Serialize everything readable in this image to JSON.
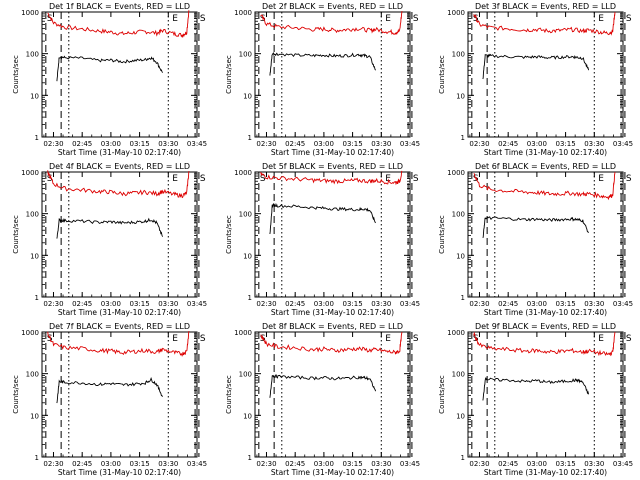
{
  "figure": {
    "xlabel": "Start Time (31-May-10 02:17:40)",
    "ylabel": "Counts/sec",
    "x_tick_labels": [
      "02:30",
      "02:45",
      "03:00",
      "03:15",
      "03:30",
      "03:45"
    ],
    "y_tick_labels": [
      "1",
      "10",
      "100",
      "1000"
    ],
    "event_marks": {
      "start": "S",
      "end": "E"
    }
  },
  "chart_data": [
    {
      "type": "line",
      "title": "Det 1f BLACK = Events, RED = LLD",
      "xlabel": "Start Time (31-May-10 02:17:40)",
      "ylabel": "Counts/sec",
      "y_scale": "log",
      "ylim": [
        1,
        1000
      ],
      "x_ticks": [
        "02:30",
        "02:45",
        "03:00",
        "03:15",
        "03:30",
        "03:45"
      ],
      "colors": {
        "lld": "#dd0000",
        "events": "#000000"
      },
      "series": [
        {
          "name": "RED = LLD",
          "t": [
            2.45,
            2.5,
            2.6,
            2.75,
            2.9,
            3.0,
            3.1,
            3.2,
            3.3,
            3.4,
            3.45,
            3.55,
            3.62,
            3.66,
            3.68
          ],
          "values": [
            950,
            550,
            430,
            390,
            350,
            330,
            300,
            320,
            340,
            310,
            360,
            300,
            280,
            320,
            1100
          ]
        },
        {
          "name": "BLACK = Events",
          "t": [
            2.53,
            2.55,
            2.6,
            2.75,
            2.9,
            3.0,
            3.1,
            3.2,
            3.3,
            3.35,
            3.4,
            3.45
          ],
          "values": [
            22,
            85,
            80,
            78,
            68,
            70,
            64,
            68,
            72,
            80,
            62,
            35
          ]
        }
      ],
      "event_lines": {
        "dashed": [
          "02:26",
          "02:34",
          "03:44",
          "03:46"
        ],
        "dotted": [
          "02:38",
          "03:30"
        ],
        "labels": {
          "S_left": "S",
          "E": "E",
          "S_right": "S"
        }
      }
    },
    {
      "type": "line",
      "title": "Det 2f BLACK = Events, RED = LLD",
      "xlabel": "Start Time (31-May-10 02:17:40)",
      "ylabel": "Counts/sec",
      "y_scale": "log",
      "ylim": [
        1,
        1000
      ],
      "x_ticks": [
        "02:30",
        "02:45",
        "03:00",
        "03:15",
        "03:30",
        "03:45"
      ],
      "colors": {
        "lld": "#dd0000",
        "events": "#000000"
      },
      "series": [
        {
          "name": "RED = LLD",
          "t": [
            2.45,
            2.5,
            2.6,
            2.75,
            2.9,
            3.0,
            3.1,
            3.2,
            3.3,
            3.4,
            3.45,
            3.55,
            3.62,
            3.66,
            3.68
          ],
          "values": [
            850,
            520,
            440,
            420,
            380,
            390,
            360,
            380,
            400,
            360,
            380,
            340,
            320,
            350,
            1050
          ]
        },
        {
          "name": "BLACK = Events",
          "t": [
            2.53,
            2.55,
            2.6,
            2.75,
            2.9,
            3.0,
            3.1,
            3.2,
            3.3,
            3.35,
            3.4,
            3.45
          ],
          "values": [
            30,
            100,
            98,
            92,
            90,
            92,
            88,
            90,
            95,
            90,
            85,
            40
          ]
        }
      ],
      "event_lines": {
        "dashed": [
          "02:26",
          "02:34",
          "03:44",
          "03:46"
        ],
        "dotted": [
          "02:38",
          "03:30"
        ],
        "labels": {
          "S_left": "S",
          "E": "E",
          "S_right": "S"
        }
      }
    },
    {
      "type": "line",
      "title": "Det 3f BLACK = Events, RED = LLD",
      "xlabel": "Start Time (31-May-10 02:17:40)",
      "ylabel": "Counts/sec",
      "y_scale": "log",
      "ylim": [
        1,
        1000
      ],
      "x_ticks": [
        "02:30",
        "02:45",
        "03:00",
        "03:15",
        "03:30",
        "03:45"
      ],
      "colors": {
        "lld": "#dd0000",
        "events": "#000000"
      },
      "series": [
        {
          "name": "RED = LLD",
          "t": [
            2.45,
            2.5,
            2.6,
            2.75,
            2.9,
            3.0,
            3.1,
            3.2,
            3.3,
            3.4,
            3.45,
            3.55,
            3.62,
            3.66,
            3.68
          ],
          "values": [
            900,
            500,
            420,
            400,
            370,
            380,
            350,
            360,
            380,
            350,
            370,
            330,
            310,
            340,
            1000
          ]
        },
        {
          "name": "BLACK = Events",
          "t": [
            2.53,
            2.55,
            2.6,
            2.75,
            2.9,
            3.0,
            3.1,
            3.2,
            3.3,
            3.35,
            3.4,
            3.45
          ],
          "values": [
            25,
            90,
            88,
            85,
            82,
            84,
            80,
            82,
            85,
            82,
            78,
            40
          ]
        }
      ],
      "event_lines": {
        "dashed": [
          "02:26",
          "02:34",
          "03:44",
          "03:46"
        ],
        "dotted": [
          "02:38",
          "03:30"
        ],
        "labels": {
          "S_left": "S",
          "E": "E",
          "S_right": "S"
        }
      }
    },
    {
      "type": "line",
      "title": "Det 4f BLACK = Events, RED = LLD",
      "xlabel": "Start Time (31-May-10 02:17:40)",
      "ylabel": "Counts/sec",
      "y_scale": "log",
      "ylim": [
        1,
        1000
      ],
      "x_ticks": [
        "02:30",
        "02:45",
        "03:00",
        "03:15",
        "03:30",
        "03:45"
      ],
      "colors": {
        "lld": "#dd0000",
        "events": "#000000"
      },
      "series": [
        {
          "name": "RED = LLD",
          "t": [
            2.45,
            2.5,
            2.6,
            2.75,
            2.9,
            3.0,
            3.1,
            3.2,
            3.3,
            3.4,
            3.45,
            3.55,
            3.62,
            3.66,
            3.68
          ],
          "values": [
            1000,
            520,
            400,
            370,
            340,
            330,
            300,
            310,
            330,
            300,
            340,
            290,
            270,
            310,
            1050
          ]
        },
        {
          "name": "BLACK = Events",
          "t": [
            2.53,
            2.55,
            2.6,
            2.75,
            2.9,
            3.0,
            3.1,
            3.2,
            3.3,
            3.35,
            3.4,
            3.45
          ],
          "values": [
            25,
            70,
            68,
            66,
            62,
            64,
            60,
            62,
            66,
            72,
            60,
            28
          ]
        }
      ],
      "event_lines": {
        "dashed": [
          "02:26",
          "02:34",
          "03:44",
          "03:46"
        ],
        "dotted": [
          "02:38",
          "03:30"
        ],
        "labels": {
          "S_left": "S",
          "E": "E",
          "S_right": "S"
        }
      }
    },
    {
      "type": "line",
      "title": "Det 5f BLACK = Events, RED = LLD",
      "xlabel": "Start Time (31-May-10 02:17:40)",
      "ylabel": "Counts/sec",
      "y_scale": "log",
      "ylim": [
        1,
        1000
      ],
      "x_ticks": [
        "02:30",
        "02:45",
        "03:00",
        "03:15",
        "03:30",
        "03:45"
      ],
      "colors": {
        "lld": "#dd0000",
        "events": "#000000"
      },
      "series": [
        {
          "name": "RED = LLD",
          "t": [
            2.45,
            2.5,
            2.6,
            2.75,
            2.9,
            3.0,
            3.1,
            3.2,
            3.3,
            3.4,
            3.45,
            3.55,
            3.62,
            3.66,
            3.68
          ],
          "values": [
            900,
            760,
            720,
            680,
            640,
            620,
            600,
            610,
            630,
            600,
            620,
            580,
            560,
            600,
            1000
          ]
        },
        {
          "name": "BLACK = Events",
          "t": [
            2.53,
            2.55,
            2.6,
            2.75,
            2.9,
            3.0,
            3.1,
            3.2,
            3.3,
            3.35,
            3.4,
            3.45
          ],
          "values": [
            30,
            160,
            155,
            150,
            140,
            135,
            130,
            128,
            125,
            130,
            120,
            60
          ]
        }
      ],
      "event_lines": {
        "dashed": [
          "02:26",
          "02:34",
          "03:44",
          "03:46"
        ],
        "dotted": [
          "02:38",
          "03:30"
        ],
        "labels": {
          "S_left": "S",
          "E": "E",
          "S_right": "S"
        }
      }
    },
    {
      "type": "line",
      "title": "Det 6f BLACK = Events, RED = LLD",
      "xlabel": "Start Time (31-May-10 02:17:40)",
      "ylabel": "Counts/sec",
      "y_scale": "log",
      "ylim": [
        1,
        1000
      ],
      "x_ticks": [
        "02:30",
        "02:45",
        "03:00",
        "03:15",
        "03:30",
        "03:45"
      ],
      "colors": {
        "lld": "#dd0000",
        "events": "#000000"
      },
      "series": [
        {
          "name": "RED = LLD",
          "t": [
            2.45,
            2.5,
            2.6,
            2.75,
            2.9,
            3.0,
            3.1,
            3.2,
            3.3,
            3.4,
            3.45,
            3.55,
            3.62,
            3.66,
            3.68
          ],
          "values": [
            950,
            480,
            380,
            350,
            330,
            320,
            300,
            300,
            310,
            290,
            300,
            270,
            250,
            280,
            1000
          ]
        },
        {
          "name": "BLACK = Events",
          "t": [
            2.53,
            2.55,
            2.6,
            2.75,
            2.9,
            3.0,
            3.1,
            3.2,
            3.3,
            3.35,
            3.4,
            3.45
          ],
          "values": [
            25,
            80,
            78,
            76,
            72,
            74,
            70,
            72,
            75,
            72,
            68,
            35
          ]
        }
      ],
      "event_lines": {
        "dashed": [
          "02:26",
          "02:34",
          "03:44",
          "03:46"
        ],
        "dotted": [
          "02:38",
          "03:30"
        ],
        "labels": {
          "S_left": "S",
          "E": "E",
          "S_right": "S"
        }
      }
    },
    {
      "type": "line",
      "title": "Det 7f BLACK = Events, RED = LLD",
      "xlabel": "Start Time (31-May-10 02:17:40)",
      "ylabel": "Counts/sec",
      "y_scale": "log",
      "ylim": [
        1,
        1000
      ],
      "x_ticks": [
        "02:30",
        "02:45",
        "03:00",
        "03:15",
        "03:30",
        "03:45"
      ],
      "colors": {
        "lld": "#dd0000",
        "events": "#000000"
      },
      "series": [
        {
          "name": "RED = LLD",
          "t": [
            2.45,
            2.5,
            2.6,
            2.75,
            2.9,
            3.0,
            3.1,
            3.2,
            3.3,
            3.4,
            3.45,
            3.55,
            3.62,
            3.66,
            3.68
          ],
          "values": [
            900,
            500,
            420,
            400,
            360,
            350,
            320,
            340,
            360,
            330,
            380,
            320,
            300,
            340,
            1050
          ]
        },
        {
          "name": "BLACK = Events",
          "t": [
            2.53,
            2.55,
            2.6,
            2.75,
            2.9,
            3.0,
            3.1,
            3.2,
            3.3,
            3.35,
            3.4,
            3.45
          ],
          "values": [
            20,
            65,
            62,
            60,
            55,
            58,
            54,
            56,
            60,
            72,
            55,
            28
          ]
        }
      ],
      "event_lines": {
        "dashed": [
          "02:26",
          "02:34",
          "03:44",
          "03:46"
        ],
        "dotted": [
          "02:38",
          "03:30"
        ],
        "labels": {
          "S_left": "S",
          "E": "E",
          "S_right": "S"
        }
      }
    },
    {
      "type": "line",
      "title": "Det 8f BLACK = Events, RED = LLD",
      "xlabel": "Start Time (31-May-10 02:17:40)",
      "ylabel": "Counts/sec",
      "y_scale": "log",
      "ylim": [
        1,
        1000
      ],
      "x_ticks": [
        "02:30",
        "02:45",
        "03:00",
        "03:15",
        "03:30",
        "03:45"
      ],
      "colors": {
        "lld": "#dd0000",
        "events": "#000000"
      },
      "series": [
        {
          "name": "RED = LLD",
          "t": [
            2.45,
            2.5,
            2.6,
            2.75,
            2.9,
            3.0,
            3.1,
            3.2,
            3.3,
            3.4,
            3.45,
            3.55,
            3.62,
            3.66,
            3.68
          ],
          "values": [
            850,
            520,
            440,
            420,
            380,
            390,
            360,
            380,
            400,
            360,
            380,
            340,
            320,
            350,
            1000
          ]
        },
        {
          "name": "BLACK = Events",
          "t": [
            2.53,
            2.55,
            2.6,
            2.75,
            2.9,
            3.0,
            3.1,
            3.2,
            3.3,
            3.35,
            3.4,
            3.45
          ],
          "values": [
            25,
            90,
            85,
            82,
            78,
            80,
            76,
            78,
            82,
            80,
            75,
            38
          ]
        }
      ],
      "event_lines": {
        "dashed": [
          "02:26",
          "02:34",
          "03:44",
          "03:46"
        ],
        "dotted": [
          "02:38",
          "03:30"
        ],
        "labels": {
          "S_left": "S",
          "E": "E",
          "S_right": "S"
        }
      }
    },
    {
      "type": "line",
      "title": "Det 9f BLACK = Events, RED = LLD",
      "xlabel": "Start Time (31-May-10 02:17:40)",
      "ylabel": "Counts/sec",
      "y_scale": "log",
      "ylim": [
        1,
        1000
      ],
      "x_ticks": [
        "02:30",
        "02:45",
        "03:00",
        "03:15",
        "03:30",
        "03:45"
      ],
      "colors": {
        "lld": "#dd0000",
        "events": "#000000"
      },
      "series": [
        {
          "name": "RED = LLD",
          "t": [
            2.45,
            2.5,
            2.6,
            2.75,
            2.9,
            3.0,
            3.1,
            3.2,
            3.3,
            3.4,
            3.45,
            3.55,
            3.62,
            3.66,
            3.68
          ],
          "values": [
            900,
            480,
            400,
            380,
            350,
            360,
            330,
            340,
            360,
            330,
            350,
            310,
            290,
            320,
            1000
          ]
        },
        {
          "name": "BLACK = Events",
          "t": [
            2.53,
            2.55,
            2.6,
            2.75,
            2.9,
            3.0,
            3.1,
            3.2,
            3.3,
            3.35,
            3.4,
            3.45
          ],
          "values": [
            22,
            75,
            72,
            70,
            65,
            68,
            62,
            64,
            68,
            70,
            62,
            32
          ]
        }
      ],
      "event_lines": {
        "dashed": [
          "02:26",
          "02:34",
          "03:44",
          "03:46"
        ],
        "dotted": [
          "02:38",
          "03:30"
        ],
        "labels": {
          "S_left": "S",
          "E": "E",
          "S_right": "S"
        }
      }
    }
  ]
}
